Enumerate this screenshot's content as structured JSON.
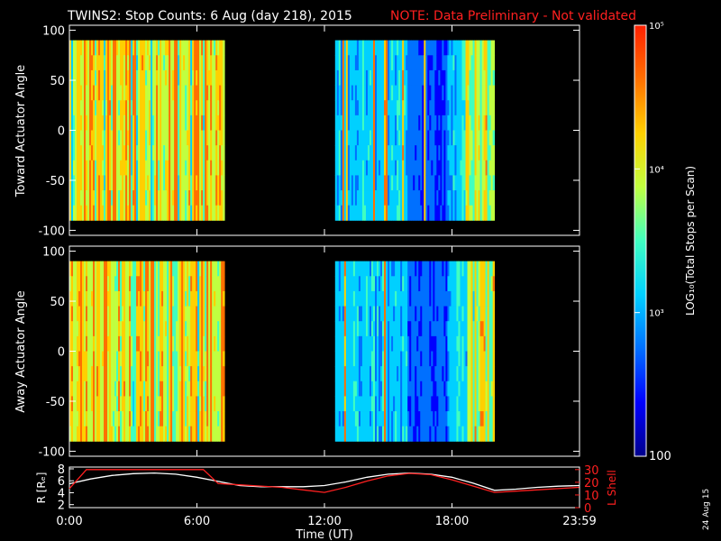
{
  "header": {
    "title": "TWINS2: Stop Counts:  6 Aug (day 218), 2015",
    "note": "NOTE: Data Preliminary - Not validated"
  },
  "footer": {
    "date_stamp": "24 Aug 15"
  },
  "colorbar": {
    "label": "LOG₁₀(Total Stops per Scan)",
    "ticks": [
      "10⁵",
      "10⁴",
      "10³",
      "100"
    ]
  },
  "colors": {
    "colormap": [
      "#00008c",
      "#0000ff",
      "#0070ff",
      "#00d0ff",
      "#40ffc0",
      "#c0ff40",
      "#ffd000",
      "#ff7000",
      "#ff2000"
    ],
    "white_trace": "#ffffff",
    "red_trace": "#ff2020"
  },
  "chart_data": [
    {
      "type": "heatmap",
      "ylabel": "Toward Actuator Angle",
      "ylim": [
        -105,
        105
      ],
      "yticks": [
        "100",
        "50",
        "0",
        "-50",
        "-100"
      ],
      "xlim": [
        0,
        24
      ],
      "data_windows": [
        {
          "start": 0.0,
          "end": 7.3,
          "dominant_level": "high (~10^4.5)"
        },
        {
          "start": 12.5,
          "end": 20.0,
          "dominant_level": "low-mid (~10^2.7-10^3.3)"
        }
      ]
    },
    {
      "type": "heatmap",
      "ylabel": "Away Actuator Angle",
      "ylim": [
        -105,
        105
      ],
      "yticks": [
        "100",
        "50",
        "0",
        "-50",
        "-100"
      ],
      "xlim": [
        0,
        24
      ],
      "data_windows": [
        {
          "start": 0.0,
          "end": 7.3,
          "dominant_level": "high (~10^4.5)"
        },
        {
          "start": 12.5,
          "end": 20.0,
          "dominant_level": "low-mid (~10^2.7-10^3.3)"
        }
      ]
    },
    {
      "type": "line",
      "xlabel": "Time (UT)",
      "ylabel_left": "R [Rₑ]",
      "ylabel_right": "L Shell",
      "xticks": [
        "0:00",
        "6:00",
        "12:00",
        "18:00",
        "23:59"
      ],
      "yticks_left": [
        "8",
        "6",
        "4",
        "2"
      ],
      "yticks_right": [
        "30",
        "20",
        "10",
        "0"
      ],
      "ylim_left": [
        1.5,
        8.3
      ],
      "ylim_right": [
        0,
        32
      ],
      "series": [
        {
          "axis": "left",
          "x": [
            0,
            1,
            2,
            3,
            4,
            5,
            6,
            7,
            8,
            9,
            10,
            11,
            12,
            13,
            14,
            15,
            16,
            17,
            18,
            19,
            20,
            21,
            22,
            23,
            23.98
          ],
          "y": [
            5.5,
            6.3,
            6.9,
            7.2,
            7.3,
            7.1,
            6.6,
            5.9,
            5.2,
            5.0,
            5.0,
            5.0,
            5.2,
            5.8,
            6.6,
            7.1,
            7.3,
            7.1,
            6.6,
            5.6,
            4.4,
            4.6,
            4.9,
            5.1,
            5.2
          ]
        },
        {
          "axis": "right",
          "x": [
            0,
            0.8,
            6.3,
            7.0,
            8,
            9,
            10,
            11,
            12,
            13,
            14,
            15,
            16,
            17,
            18,
            19,
            20,
            21,
            22,
            23,
            23.98
          ],
          "y": [
            15,
            30,
            30,
            19,
            18,
            17,
            16,
            14,
            12,
            16,
            21,
            25,
            27,
            26,
            22,
            17,
            12,
            13,
            14,
            15,
            16
          ]
        }
      ]
    }
  ]
}
